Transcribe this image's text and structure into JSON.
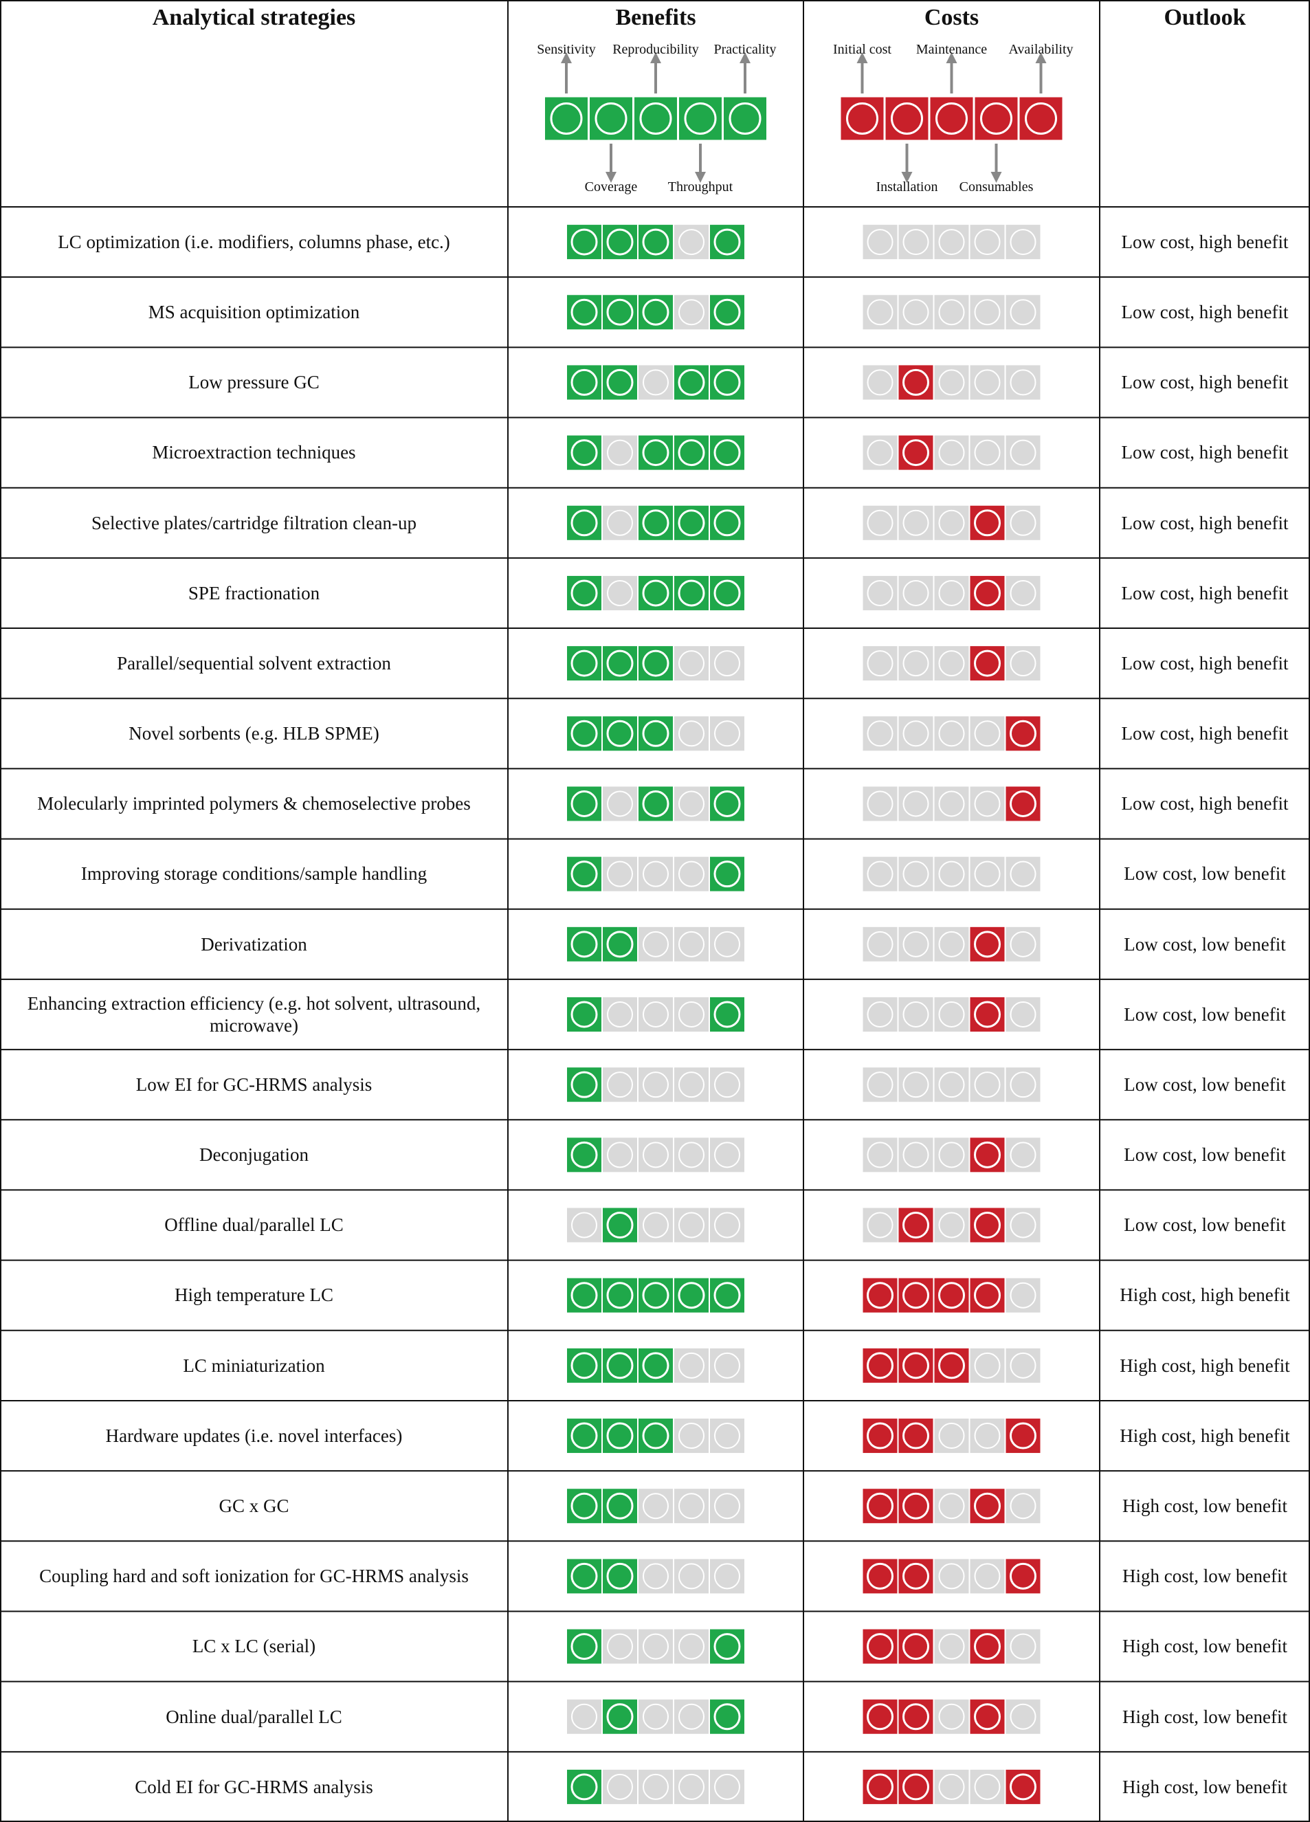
{
  "header": {
    "strategies": "Analytical strategies",
    "benefits": "Benefits",
    "costs": "Costs",
    "outlook": "Outlook",
    "benefit_labels": [
      "Sensitivity",
      "Coverage",
      "Reproducibility",
      "Throughput",
      "Practicality"
    ],
    "cost_labels": [
      "Initial cost",
      "Installation",
      "Maintenance",
      "Consumables",
      "Availability"
    ]
  },
  "colors": {
    "benefit": "#1fa84a",
    "cost": "#c8202a",
    "off": "#d9d9d9"
  },
  "rows": [
    {
      "strategy": "LC optimization (i.e. modifiers, columns phase, etc.)",
      "benefits": [
        true,
        true,
        true,
        false,
        true
      ],
      "costs": [
        false,
        false,
        false,
        false,
        false
      ],
      "outlook": "Low cost, high benefit"
    },
    {
      "strategy": "MS acquisition optimization",
      "benefits": [
        true,
        true,
        true,
        false,
        true
      ],
      "costs": [
        false,
        false,
        false,
        false,
        false
      ],
      "outlook": "Low cost, high benefit"
    },
    {
      "strategy": "Low pressure GC",
      "benefits": [
        true,
        true,
        false,
        true,
        true
      ],
      "costs": [
        false,
        true,
        false,
        false,
        false
      ],
      "outlook": "Low cost, high benefit"
    },
    {
      "strategy": "Microextraction techniques",
      "benefits": [
        true,
        false,
        true,
        true,
        true
      ],
      "costs": [
        false,
        true,
        false,
        false,
        false
      ],
      "outlook": "Low cost, high benefit"
    },
    {
      "strategy": "Selective plates/cartridge filtration clean-up",
      "benefits": [
        true,
        false,
        true,
        true,
        true
      ],
      "costs": [
        false,
        false,
        false,
        true,
        false
      ],
      "outlook": "Low cost, high benefit"
    },
    {
      "strategy": "SPE fractionation",
      "benefits": [
        true,
        false,
        true,
        true,
        true
      ],
      "costs": [
        false,
        false,
        false,
        true,
        false
      ],
      "outlook": "Low cost, high benefit"
    },
    {
      "strategy": "Parallel/sequential solvent extraction",
      "benefits": [
        true,
        true,
        true,
        false,
        false
      ],
      "costs": [
        false,
        false,
        false,
        true,
        false
      ],
      "outlook": "Low cost, high benefit"
    },
    {
      "strategy": "Novel sorbents (e.g. HLB SPME)",
      "benefits": [
        true,
        true,
        true,
        false,
        false
      ],
      "costs": [
        false,
        false,
        false,
        false,
        true
      ],
      "outlook": "Low cost, high benefit"
    },
    {
      "strategy": "Molecularly imprinted polymers & chemoselective probes",
      "benefits": [
        true,
        false,
        true,
        false,
        true
      ],
      "costs": [
        false,
        false,
        false,
        false,
        true
      ],
      "outlook": "Low cost, high benefit"
    },
    {
      "strategy": "Improving storage conditions/sample handling",
      "benefits": [
        true,
        false,
        false,
        false,
        true
      ],
      "costs": [
        false,
        false,
        false,
        false,
        false
      ],
      "outlook": "Low cost, low benefit"
    },
    {
      "strategy": "Derivatization",
      "benefits": [
        true,
        true,
        false,
        false,
        false
      ],
      "costs": [
        false,
        false,
        false,
        true,
        false
      ],
      "outlook": "Low cost, low benefit"
    },
    {
      "strategy": "Enhancing extraction efficiency (e.g. hot solvent, ultrasound, microwave)",
      "benefits": [
        true,
        false,
        false,
        false,
        true
      ],
      "costs": [
        false,
        false,
        false,
        true,
        false
      ],
      "outlook": "Low cost, low benefit"
    },
    {
      "strategy": "Low EI for GC-HRMS analysis",
      "benefits": [
        true,
        false,
        false,
        false,
        false
      ],
      "costs": [
        false,
        false,
        false,
        false,
        false
      ],
      "outlook": "Low cost, low benefit"
    },
    {
      "strategy": "Deconjugation",
      "benefits": [
        true,
        false,
        false,
        false,
        false
      ],
      "costs": [
        false,
        false,
        false,
        true,
        false
      ],
      "outlook": "Low cost, low benefit"
    },
    {
      "strategy": "Offline dual/parallel LC",
      "benefits": [
        false,
        true,
        false,
        false,
        false
      ],
      "costs": [
        false,
        true,
        false,
        true,
        false
      ],
      "outlook": "Low cost, low benefit"
    },
    {
      "strategy": "High temperature LC",
      "benefits": [
        true,
        true,
        true,
        true,
        true
      ],
      "costs": [
        true,
        true,
        true,
        true,
        false
      ],
      "outlook": "High cost, high benefit"
    },
    {
      "strategy": "LC miniaturization",
      "benefits": [
        true,
        true,
        true,
        false,
        false
      ],
      "costs": [
        true,
        true,
        true,
        false,
        false
      ],
      "outlook": "High cost, high benefit"
    },
    {
      "strategy": "Hardware updates (i.e. novel interfaces)",
      "benefits": [
        true,
        true,
        true,
        false,
        false
      ],
      "costs": [
        true,
        true,
        false,
        false,
        true
      ],
      "outlook": "High cost, high benefit"
    },
    {
      "strategy": "GC x GC",
      "benefits": [
        true,
        true,
        false,
        false,
        false
      ],
      "costs": [
        true,
        true,
        false,
        true,
        false
      ],
      "outlook": "High cost, low benefit"
    },
    {
      "strategy": "Coupling hard and soft ionization for GC-HRMS analysis",
      "benefits": [
        true,
        true,
        false,
        false,
        false
      ],
      "costs": [
        true,
        true,
        false,
        false,
        true
      ],
      "outlook": "High cost, low benefit"
    },
    {
      "strategy": "LC x LC (serial)",
      "benefits": [
        true,
        false,
        false,
        false,
        true
      ],
      "costs": [
        true,
        true,
        false,
        true,
        false
      ],
      "outlook": "High cost, low benefit"
    },
    {
      "strategy": "Online dual/parallel LC",
      "benefits": [
        false,
        true,
        false,
        false,
        true
      ],
      "costs": [
        true,
        true,
        false,
        true,
        false
      ],
      "outlook": "High cost, low benefit"
    },
    {
      "strategy": "Cold EI for GC-HRMS analysis",
      "benefits": [
        true,
        false,
        false,
        false,
        false
      ],
      "costs": [
        true,
        true,
        false,
        false,
        true
      ],
      "outlook": "High cost, low benefit"
    }
  ]
}
